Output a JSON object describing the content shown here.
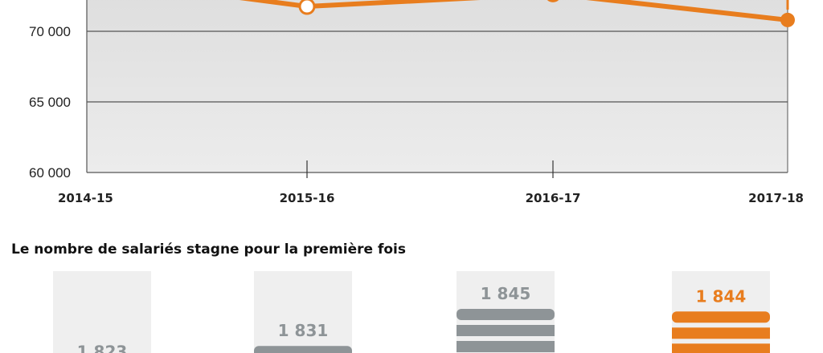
{
  "chart_data": [
    {
      "type": "line",
      "x": [
        "2014-15",
        "2015-16",
        "2016-17",
        "2017-18"
      ],
      "series": [
        {
          "values": [
            73800,
            71760,
            72650,
            70800
          ]
        }
      ],
      "ylim": [
        60000,
        72000
      ],
      "yticks": [
        "60 000",
        "65 000",
        "70 000"
      ],
      "ytick_values": [
        60000,
        65000,
        70000
      ],
      "grid": true,
      "color": "#e87d1e",
      "background": "#e9e9e9"
    },
    {
      "type": "bar",
      "title": "Le nombre de salariés stagne pour la première fois",
      "categories": [
        "2014-15",
        "2015-16",
        "2016-17",
        "2017-18"
      ],
      "values": [
        1823,
        1831,
        1845,
        1844
      ],
      "labels": [
        "1 823",
        "1 831",
        "1 845",
        "1 844"
      ],
      "colors": [
        "#8e9497",
        "#8e9497",
        "#8e9497",
        "#e87d1e"
      ]
    }
  ]
}
